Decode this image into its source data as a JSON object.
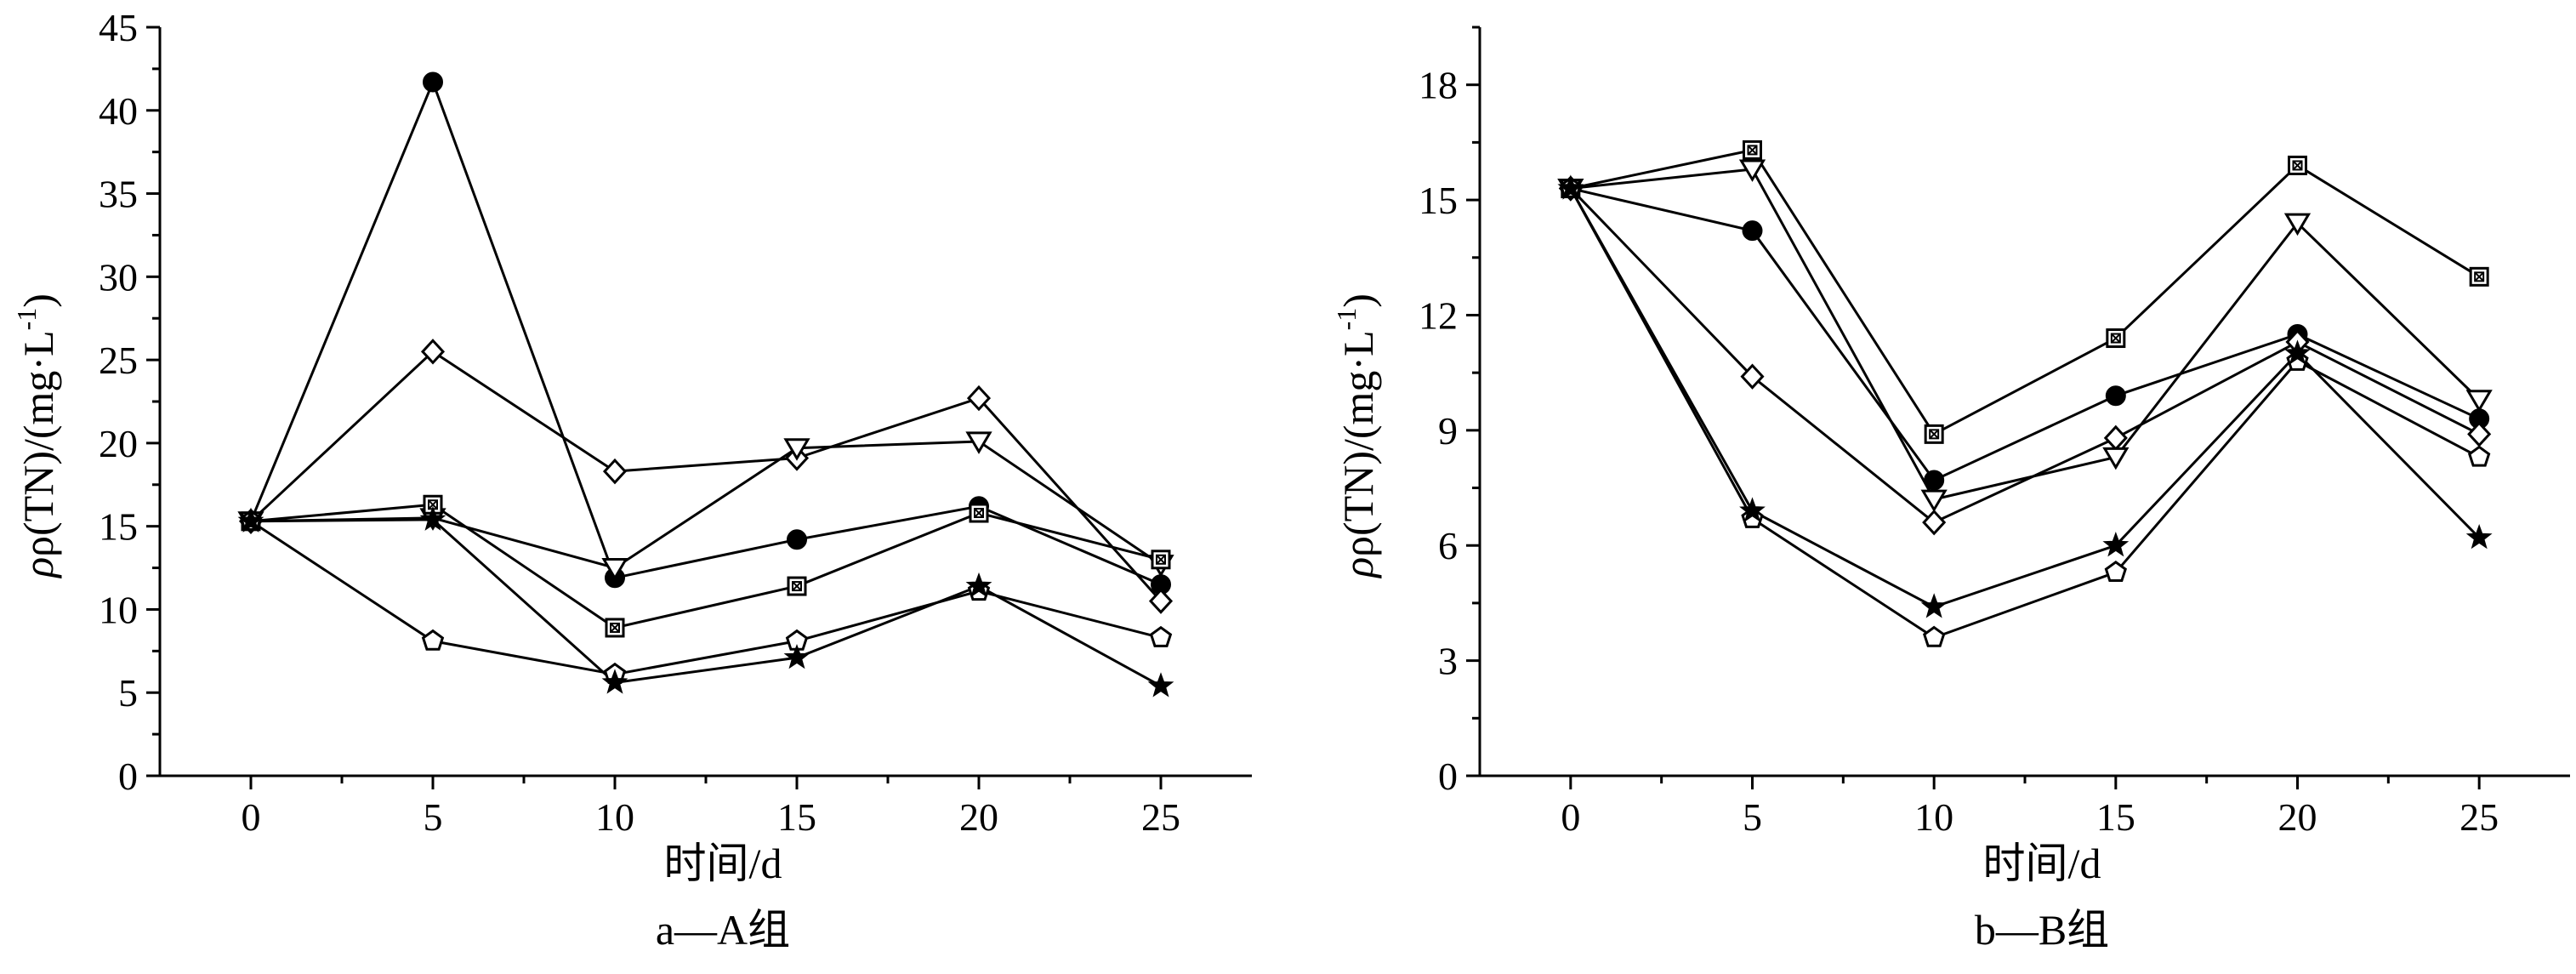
{
  "chart_data": [
    {
      "type": "line",
      "caption": "a—A组",
      "xlabel": "时间/d",
      "ylabel_main": "ρ(TN)/(mg·L",
      "ylabel_sup": "-1",
      "ylabel_close": ")",
      "x": [
        0,
        5,
        10,
        15,
        20,
        25
      ],
      "xlim": [
        -2.5,
        27.5
      ],
      "ylim": [
        0,
        45
      ],
      "yticks": [
        0,
        5,
        10,
        15,
        20,
        25,
        30,
        35,
        40,
        45
      ],
      "xticks": [
        0,
        5,
        10,
        15,
        20,
        25
      ],
      "series": [
        {
          "marker": "filled-circle",
          "values": [
            15.3,
            41.7,
            11.9,
            14.2,
            16.2,
            11.5
          ]
        },
        {
          "marker": "open-diamond",
          "values": [
            15.3,
            25.5,
            18.3,
            19.1,
            22.7,
            10.5
          ]
        },
        {
          "marker": "open-triangle-down",
          "values": [
            15.3,
            15.5,
            12.5,
            19.7,
            20.1,
            12.7
          ]
        },
        {
          "marker": "boxed-square",
          "values": [
            15.3,
            16.3,
            8.9,
            11.4,
            15.8,
            13.0
          ]
        },
        {
          "marker": "open-pentagon",
          "values": [
            15.3,
            8.1,
            6.1,
            8.1,
            11.1,
            8.3
          ]
        },
        {
          "marker": "filled-star",
          "values": [
            15.3,
            15.4,
            5.6,
            7.1,
            11.4,
            5.4
          ]
        }
      ]
    },
    {
      "type": "line",
      "caption": "b—B组",
      "xlabel": "时间/d",
      "ylabel_main": "ρ(TN)/(mg·L",
      "ylabel_sup": "-1",
      "ylabel_close": ")",
      "x": [
        0,
        5,
        10,
        15,
        20,
        25
      ],
      "xlim": [
        -2.5,
        27.5
      ],
      "ylim": [
        0,
        19.5
      ],
      "yticks": [
        0,
        3,
        6,
        9,
        12,
        15,
        18
      ],
      "xticks": [
        0,
        5,
        10,
        15,
        20,
        25
      ],
      "series": [
        {
          "marker": "filled-circle",
          "values": [
            15.3,
            14.2,
            7.7,
            9.9,
            11.5,
            9.3
          ]
        },
        {
          "marker": "open-diamond",
          "values": [
            15.3,
            10.4,
            6.6,
            8.8,
            11.3,
            8.9
          ]
        },
        {
          "marker": "open-triangle-down",
          "values": [
            15.3,
            15.8,
            7.2,
            8.3,
            14.4,
            9.8
          ]
        },
        {
          "marker": "boxed-square",
          "values": [
            15.3,
            16.3,
            8.9,
            11.4,
            15.9,
            13.0
          ]
        },
        {
          "marker": "open-pentagon",
          "values": [
            15.3,
            6.7,
            3.6,
            5.3,
            10.8,
            8.3
          ]
        },
        {
          "marker": "filled-star",
          "values": [
            15.3,
            6.9,
            4.4,
            6.0,
            11.0,
            6.2
          ]
        }
      ]
    }
  ]
}
